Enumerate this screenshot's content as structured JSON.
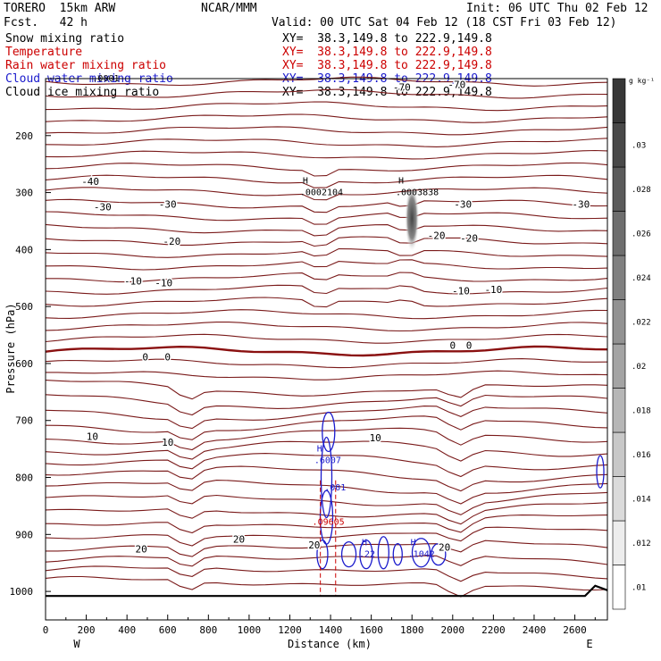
{
  "header": {
    "model": "TORERO  15km ARW",
    "fcst": "Fcst.   42 h",
    "center": "NCAR/MMM",
    "init": "Init: 06 UTC Thu 02 Feb 12",
    "valid": "Valid: 00 UTC Sat 04 Feb 12 (18 CST Fri 03 Feb 12)",
    "fields": [
      {
        "name": "Snow mixing ratio",
        "xy": "XY=  38.3,149.8 to 222.9,149.8"
      },
      {
        "name": "Temperature",
        "xy": "XY=  38.3,149.8 to 222.9,149.8"
      },
      {
        "name": "Rain water mixing ratio",
        "xy": "XY=  38.3,149.8 to 222.9,149.8"
      },
      {
        "name": "Cloud water mixing ratio",
        "xy": "XY=  38.3,149.8 to 222.9,149.8"
      },
      {
        "name": "Cloud ice mixing ratio",
        "xy": "XY=  38.3,149.8 to 222.9,149.8"
      }
    ],
    "colors": {
      "black": "#000000",
      "red": "#cc0000",
      "blue": "#1a1acc"
    }
  },
  "chart_data": {
    "type": "cross-section",
    "xlabel": "Distance (km)",
    "ylabel": "Pressure (hPa)",
    "x_ticks": [
      0,
      200,
      400,
      600,
      800,
      1000,
      1200,
      1400,
      1600,
      1800,
      2000,
      2200,
      2400,
      2600
    ],
    "xlim": [
      0,
      2760
    ],
    "y_ticks": [
      200,
      300,
      400,
      500,
      600,
      700,
      800,
      900,
      1000
    ],
    "ylim": [
      1050,
      100
    ],
    "end_labels": {
      "left": "W",
      "right": "E"
    },
    "colorbar": {
      "unit": "g kg⁻¹",
      "ticks": [
        ".01",
        ".012",
        ".014",
        ".016",
        ".018",
        ".02",
        ".022",
        ".024",
        ".026",
        ".028",
        ".03"
      ]
    },
    "temperature_contours": {
      "color": "#7a1a1a",
      "labels": [
        {
          "text": "-70",
          "x": 1750,
          "p": 115
        },
        {
          "text": "-70",
          "x": 2020,
          "p": 110
        },
        {
          "text": "-40",
          "x": 220,
          "p": 280
        },
        {
          "text": "-30",
          "x": 280,
          "p": 325
        },
        {
          "text": "-30",
          "x": 600,
          "p": 320
        },
        {
          "text": "-30",
          "x": 2050,
          "p": 320
        },
        {
          "text": "-30",
          "x": 2630,
          "p": 320
        },
        {
          "text": "-20",
          "x": 620,
          "p": 385
        },
        {
          "text": "-20",
          "x": 1920,
          "p": 375
        },
        {
          "text": "-20",
          "x": 2080,
          "p": 380
        },
        {
          "text": "-10",
          "x": 430,
          "p": 455
        },
        {
          "text": "-10",
          "x": 580,
          "p": 458
        },
        {
          "text": "-10",
          "x": 2040,
          "p": 472
        },
        {
          "text": "-10",
          "x": 2200,
          "p": 470
        },
        {
          "text": "0",
          "x": 490,
          "p": 588
        },
        {
          "text": "0",
          "x": 600,
          "p": 588
        },
        {
          "text": "0",
          "x": 2000,
          "p": 568
        },
        {
          "text": "0",
          "x": 2080,
          "p": 568
        },
        {
          "text": "10",
          "x": 230,
          "p": 728
        },
        {
          "text": "10",
          "x": 600,
          "p": 738
        },
        {
          "text": "10",
          "x": 1620,
          "p": 730
        },
        {
          "text": "20",
          "x": 1320,
          "p": 918
        },
        {
          "text": "20",
          "x": 950,
          "p": 908
        },
        {
          "text": "20",
          "x": 470,
          "p": 925
        },
        {
          "text": "20",
          "x": 1960,
          "p": 922
        }
      ]
    },
    "maxima": [
      {
        "mark": "H",
        "value": ".0002104",
        "x": 1250,
        "p": 300,
        "color": "#000000"
      },
      {
        "mark": "H",
        "value": ".0003838",
        "x": 1720,
        "p": 300,
        "color": "#000000"
      },
      {
        "mark": "H",
        "value": ".6007",
        "x": 1320,
        "p": 770,
        "color": "#1a1acc"
      },
      {
        "mark": "",
        "value": ".001",
        "x": 1370,
        "p": 818,
        "color": "#1a1acc"
      },
      {
        "mark": "",
        "value": ".09605",
        "x": 1310,
        "p": 878,
        "color": "#cc0000"
      },
      {
        "mark": "H",
        "value": ".22",
        "x": 1540,
        "p": 935,
        "color": "#1a1acc"
      },
      {
        "mark": "H",
        "value": ".1042",
        "x": 1780,
        "p": 935,
        "color": "#1a1acc"
      },
      {
        "mark": "",
        "value": ".0001",
        "x": 230,
        "p": 100,
        "color": "#000000"
      }
    ]
  }
}
